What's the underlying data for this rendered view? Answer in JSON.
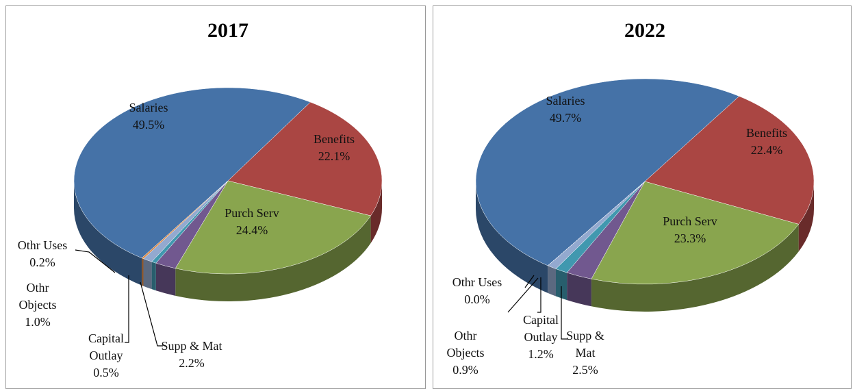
{
  "chart_data": [
    {
      "type": "pie",
      "title": "2017",
      "categories": [
        "Salaries",
        "Benefits",
        "Purch Serv",
        "Supp & Mat",
        "Capital Outlay",
        "Othr Objects",
        "Othr Uses"
      ],
      "values": [
        49.5,
        22.1,
        24.4,
        2.2,
        0.5,
        1.0,
        0.2
      ],
      "value_labels": [
        "49.5%",
        "22.1%",
        "24.4%",
        "2.2%",
        "0.5%",
        "1.0%",
        "0.2%"
      ],
      "colors": [
        "#4572a7",
        "#aa4643",
        "#89a54e",
        "#71588f",
        "#4198af",
        "#93a9cf",
        "#db843d"
      ]
    },
    {
      "type": "pie",
      "title": "2022",
      "categories": [
        "Salaries",
        "Benefits",
        "Purch Serv",
        "Supp & Mat",
        "Capital Outlay",
        "Othr Objects",
        "Othr Uses"
      ],
      "values": [
        49.7,
        22.4,
        23.3,
        2.5,
        1.2,
        0.9,
        0.0
      ],
      "value_labels": [
        "49.7%",
        "22.4%",
        "23.3%",
        "2.5%",
        "1.2%",
        "0.9%",
        "0.0%"
      ],
      "colors": [
        "#4572a7",
        "#aa4643",
        "#89a54e",
        "#71588f",
        "#4198af",
        "#93a9cf",
        "#db843d"
      ]
    }
  ]
}
